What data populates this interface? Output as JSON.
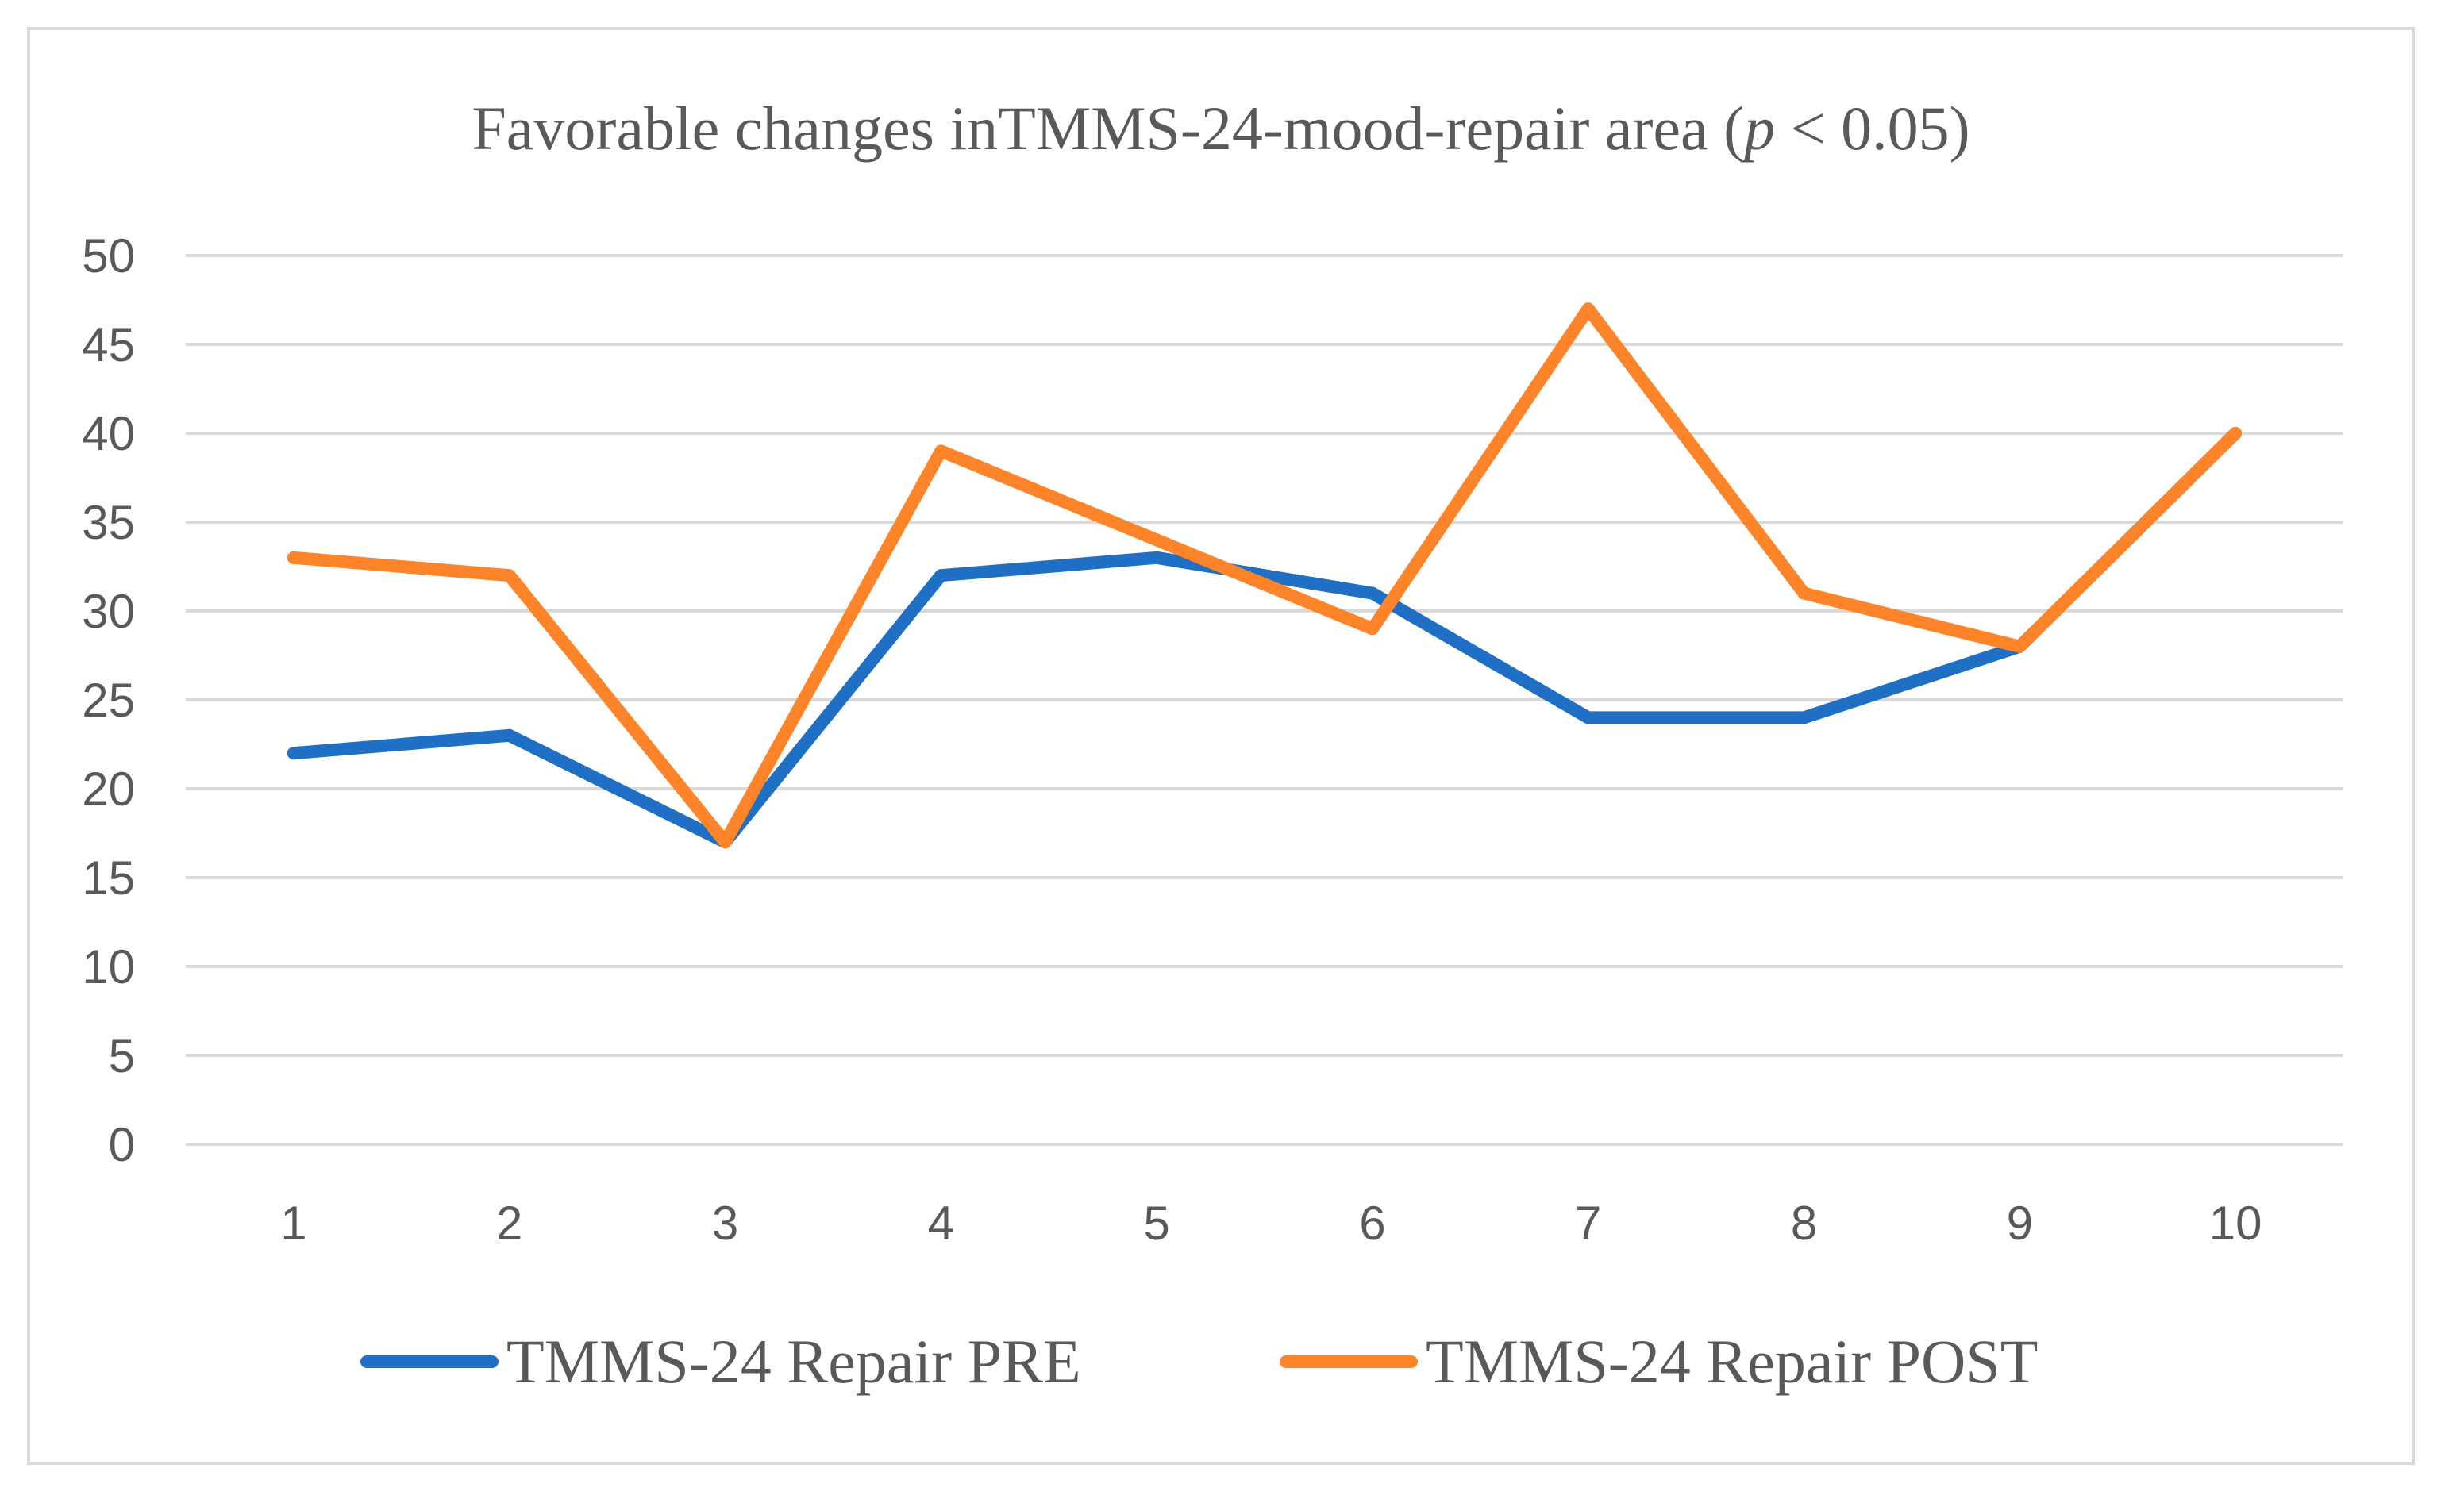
{
  "chart_data": {
    "type": "line",
    "title_main": "Favorable changes inTMMS-24-mood-repair area (",
    "title_italic": "p",
    "title_tail": " < 0.05)",
    "categories": [
      "1",
      "2",
      "3",
      "4",
      "5",
      "6",
      "7",
      "8",
      "9",
      "10"
    ],
    "ylim": [
      0,
      50
    ],
    "yticks": [
      "0",
      "5",
      "10",
      "15",
      "20",
      "25",
      "30",
      "35",
      "40",
      "45",
      "50"
    ],
    "grid": true,
    "legend_position": "bottom",
    "series": [
      {
        "name": "TMMS-24 Repair PRE",
        "color": "#1f6fc5",
        "values": [
          22,
          23,
          17,
          32,
          33,
          31,
          24,
          24,
          28,
          40
        ]
      },
      {
        "name": "TMMS-24 Repair POST",
        "color": "#fe8429",
        "values": [
          33,
          32,
          17,
          39,
          34,
          29,
          47,
          31,
          28,
          40
        ]
      }
    ]
  }
}
